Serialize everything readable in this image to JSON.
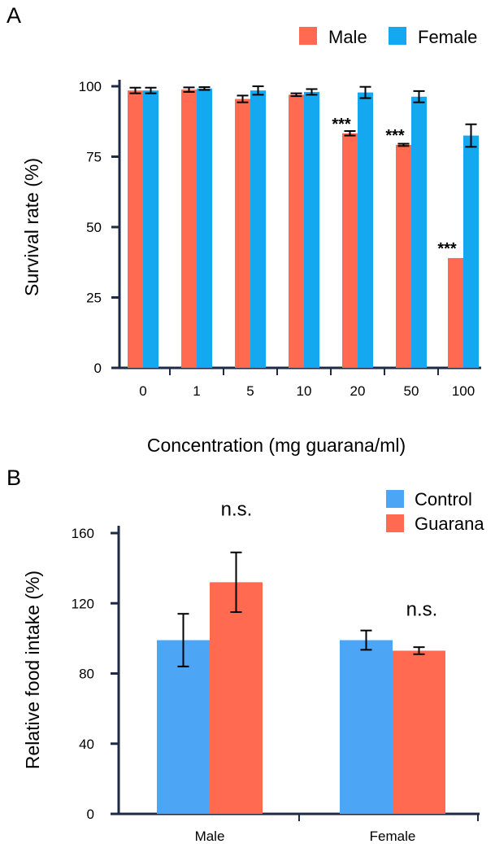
{
  "colors": {
    "male": "#FF6A50",
    "female": "#14A8F0",
    "control": "#4DA6F5",
    "guarana": "#FF6A50",
    "axis": "#1F2A44"
  },
  "chart_data": [
    {
      "type": "bar",
      "panel_label": "A",
      "categories": [
        "0",
        "1",
        "5",
        "10",
        "20",
        "50",
        "100"
      ],
      "series": [
        {
          "name": "Male",
          "values": [
            98.5,
            98.8,
            95.5,
            97.0,
            83.3,
            79.2,
            39.0
          ],
          "errors": [
            1.0,
            0.8,
            1.2,
            0.5,
            0.8,
            0.4,
            0
          ]
        },
        {
          "name": "Female",
          "values": [
            98.5,
            99.2,
            98.5,
            98.0,
            97.8,
            96.3,
            82.5
          ],
          "errors": [
            1.0,
            0.5,
            1.5,
            1.0,
            2.0,
            2.0,
            4.0
          ]
        }
      ],
      "annotations": [
        {
          "category": "20",
          "text": "***"
        },
        {
          "category": "50",
          "text": "***"
        },
        {
          "category": "100",
          "text": "***"
        }
      ],
      "xlabel": "Concentration (mg guarana/ml)",
      "ylabel": "Survival rate  (%)",
      "yticks": [
        0,
        25,
        50,
        75,
        100
      ],
      "ylim": [
        0,
        100
      ],
      "legend": "top-right"
    },
    {
      "type": "bar",
      "panel_label": "B",
      "categories": [
        "Male",
        "Female"
      ],
      "series": [
        {
          "name": "Control",
          "values": [
            99,
            99
          ],
          "errors": [
            15,
            5.5
          ]
        },
        {
          "name": "Guarana",
          "values": [
            132,
            93
          ],
          "errors": [
            17,
            2
          ]
        }
      ],
      "annotations": [
        {
          "category": "Male",
          "text": "n.s."
        },
        {
          "category": "Female",
          "text": "n.s."
        }
      ],
      "xlabel": "",
      "ylabel": "Relative food intake  (%)",
      "yticks": [
        0,
        40,
        80,
        120,
        160
      ],
      "ylim": [
        0,
        160
      ],
      "legend": "top-right"
    }
  ]
}
